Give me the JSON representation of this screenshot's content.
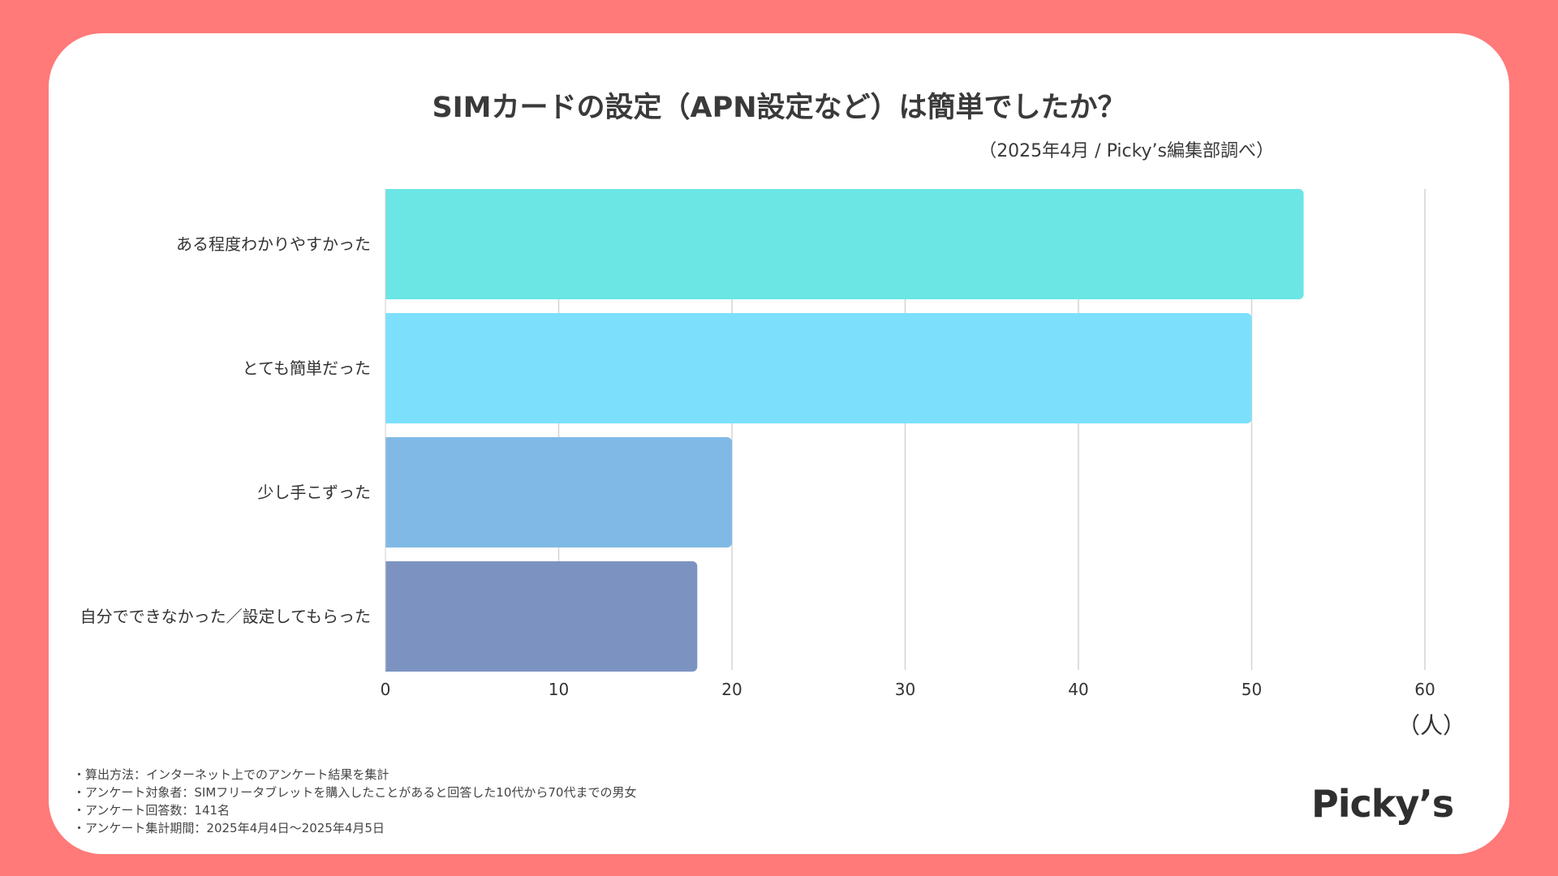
{
  "header": {
    "title": "SIMカードの設定（APN設定など）は簡単でしたか？",
    "subtitle": "（2025年4月 / Picky’s編集部調べ）"
  },
  "chart_data": {
    "type": "bar",
    "orientation": "horizontal",
    "title": "SIMカードの設定（APN設定など）は簡単でしたか？",
    "xlabel": "（人）",
    "ylabel": "",
    "xlim": [
      0,
      60
    ],
    "xticks": [
      0,
      10,
      20,
      30,
      40,
      50,
      60
    ],
    "grid": true,
    "categories": [
      "ある程度わかりやすかった",
      "とても簡単だった",
      "少し手こずった",
      "自分でできなかった／設定してもらった"
    ],
    "values": [
      53,
      50,
      20,
      18
    ],
    "colors": [
      "#6ce5e5",
      "#7ce0fd",
      "#80b9e6",
      "#7c93c2"
    ]
  },
  "notes": [
    "・算出方法：インターネット上でのアンケート結果を集計",
    "・アンケート対象者：SIMフリータブレットを購入したことがあると回答した10代から70代までの男女",
    "・アンケート回答数：141名",
    "・アンケート集計期間：2025年4月4日〜2025年4月5日"
  ],
  "logo": {
    "text": "Picky’s"
  }
}
